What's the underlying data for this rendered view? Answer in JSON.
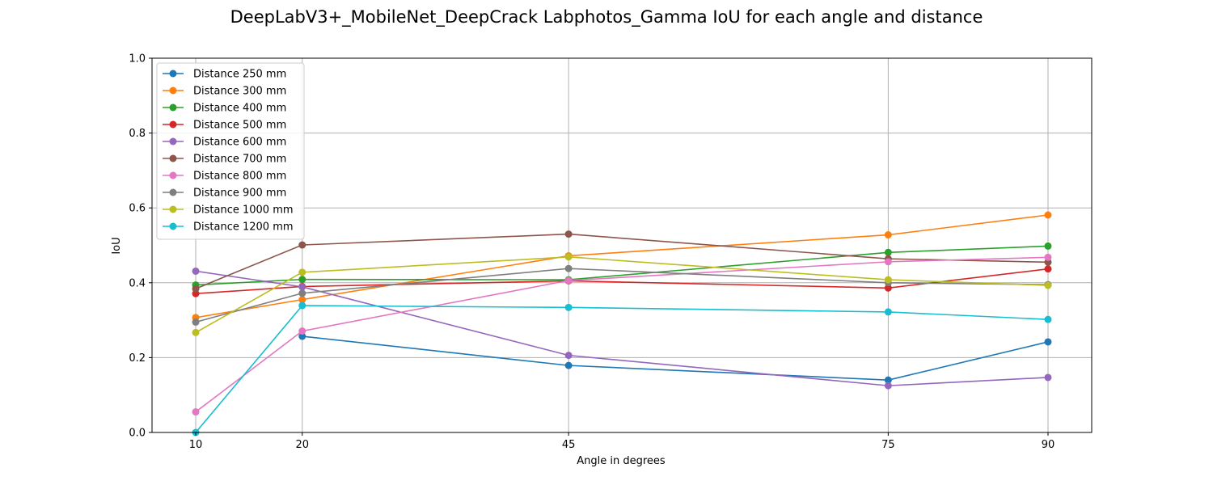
{
  "chart_data": {
    "type": "line",
    "title": "DeepLabV3+_MobileNet_DeepCrack Labphotos_Gamma IoU for each angle and distance",
    "xlabel": "Angle in degrees",
    "ylabel": "IoU",
    "x": [
      10,
      20,
      45,
      75,
      90
    ],
    "x_ticks": [
      "10",
      "20",
      "45",
      "75",
      "90"
    ],
    "xlim": [
      5.9,
      94.1
    ],
    "ylim": [
      0.0,
      1.0
    ],
    "y_ticks": [
      "0.0",
      "0.2",
      "0.4",
      "0.6",
      "0.8",
      "1.0"
    ],
    "grid": true,
    "legend_position": "upper left",
    "series": [
      {
        "name": "Distance 250 mm",
        "color": "#1f77b4",
        "x": [
          20,
          45,
          75,
          90
        ],
        "values": [
          0.257,
          0.179,
          0.14,
          0.242
        ]
      },
      {
        "name": "Distance 300 mm",
        "color": "#ff7f0e",
        "x": [
          10,
          20,
          45,
          75,
          90
        ],
        "values": [
          0.307,
          0.355,
          0.472,
          0.528,
          0.581
        ]
      },
      {
        "name": "Distance 400 mm",
        "color": "#2ca02c",
        "x": [
          10,
          20,
          45,
          75,
          90
        ],
        "values": [
          0.394,
          0.409,
          0.408,
          0.481,
          0.498
        ]
      },
      {
        "name": "Distance 500 mm",
        "color": "#d62728",
        "x": [
          10,
          20,
          45,
          75,
          90
        ],
        "values": [
          0.371,
          0.39,
          0.405,
          0.386,
          0.437
        ]
      },
      {
        "name": "Distance 600 mm",
        "color": "#9467bd",
        "x": [
          10,
          20,
          45,
          75,
          90
        ],
        "values": [
          0.431,
          0.389,
          0.206,
          0.125,
          0.147
        ]
      },
      {
        "name": "Distance 700 mm",
        "color": "#8c564b",
        "x": [
          10,
          20,
          45,
          75,
          90
        ],
        "values": [
          0.384,
          0.501,
          0.53,
          0.464,
          0.455
        ]
      },
      {
        "name": "Distance 800 mm",
        "color": "#e377c2",
        "x": [
          10,
          20,
          45,
          75,
          90
        ],
        "values": [
          0.055,
          0.271,
          0.406,
          0.456,
          0.468
        ]
      },
      {
        "name": "Distance 900 mm",
        "color": "#7f7f7f",
        "x": [
          10,
          20,
          45,
          75,
          90
        ],
        "values": [
          0.295,
          0.372,
          0.438,
          0.4,
          0.395
        ]
      },
      {
        "name": "Distance 1000 mm",
        "color": "#bcbd22",
        "x": [
          10,
          20,
          45,
          75,
          90
        ],
        "values": [
          0.267,
          0.428,
          0.469,
          0.408,
          0.393
        ]
      },
      {
        "name": "Distance 1200 mm",
        "color": "#17becf",
        "x": [
          10,
          20,
          45,
          75,
          90
        ],
        "values": [
          0.0,
          0.339,
          0.334,
          0.322,
          0.302
        ]
      }
    ]
  }
}
